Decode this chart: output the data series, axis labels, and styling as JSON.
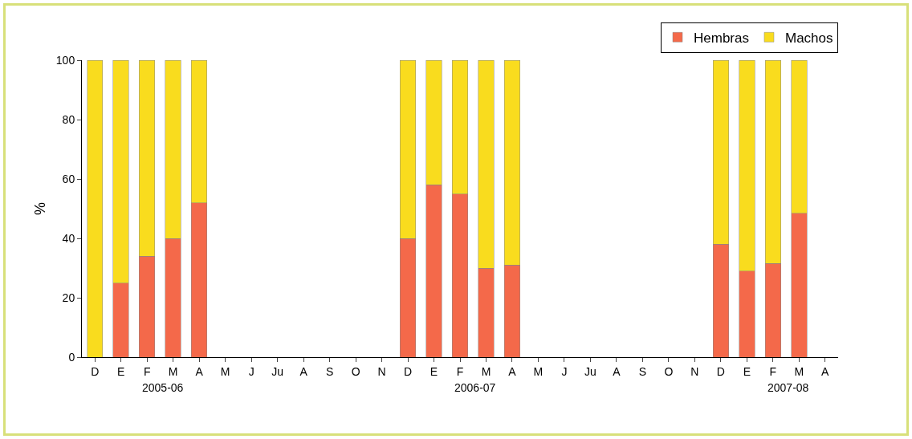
{
  "chart_data": {
    "type": "bar",
    "stacked": true,
    "ylabel": "%",
    "categories": [
      "D",
      "E",
      "F",
      "M",
      "A",
      "M",
      "J",
      "Ju",
      "A",
      "S",
      "O",
      "N",
      "D",
      "E",
      "F",
      "M",
      "A",
      "M",
      "J",
      "Ju",
      "A",
      "S",
      "O",
      "N",
      "D",
      "E",
      "F",
      "M",
      "A"
    ],
    "series": [
      {
        "name": "Hembras",
        "color": "#f4694a",
        "values": [
          0,
          25,
          34,
          40,
          52,
          null,
          null,
          null,
          null,
          null,
          null,
          null,
          40,
          58,
          55,
          30,
          31,
          null,
          null,
          null,
          null,
          null,
          null,
          null,
          38,
          29,
          31.5,
          48.5,
          null
        ]
      },
      {
        "name": "Machos",
        "color": "#f9dc1e",
        "values": [
          100,
          75,
          66,
          60,
          48,
          null,
          null,
          null,
          null,
          null,
          null,
          null,
          60,
          42,
          45,
          70,
          69,
          null,
          null,
          null,
          null,
          null,
          null,
          null,
          62,
          71,
          68.5,
          51.5,
          null
        ]
      }
    ],
    "ylim": [
      0,
      100
    ],
    "yticks": [
      0,
      20,
      40,
      60,
      80,
      100
    ],
    "grid": false,
    "legend": "top right",
    "annotations": [
      "2005-06",
      "2006-07",
      "2007-08"
    ]
  }
}
